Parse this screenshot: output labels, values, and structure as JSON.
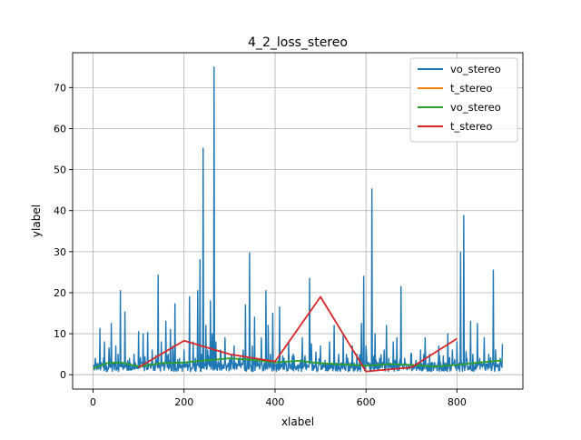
{
  "chart_data": {
    "type": "line",
    "title": "4_2_loss_stereo",
    "xlabel": "xlabel",
    "ylabel": "ylabel",
    "xlim": [
      -45,
      945
    ],
    "ylim": [
      -3.5,
      78.5
    ],
    "xticks": [
      0,
      200,
      400,
      600,
      800
    ],
    "yticks": [
      0,
      10,
      20,
      30,
      40,
      50,
      60,
      70
    ],
    "grid": true,
    "legend_position": "top-right",
    "series": [
      {
        "name": "vo_stereo",
        "color": "#1f77b4",
        "noisy": true,
        "x_range": [
          0,
          900
        ],
        "baseline": 2.5,
        "peaks": [
          [
            2,
            1.0
          ],
          [
            5,
            4.0
          ],
          [
            10,
            1.5
          ],
          [
            15,
            11.3
          ],
          [
            20,
            2.5
          ],
          [
            25,
            8.0
          ],
          [
            30,
            2.0
          ],
          [
            35,
            6.5
          ],
          [
            40,
            12.5
          ],
          [
            45,
            3.0
          ],
          [
            50,
            7.0
          ],
          [
            55,
            5.0
          ],
          [
            60,
            20.5
          ],
          [
            65,
            3.0
          ],
          [
            70,
            15.3
          ],
          [
            80,
            4.0
          ],
          [
            90,
            5.0
          ],
          [
            100,
            10.5
          ],
          [
            105,
            3.0
          ],
          [
            110,
            10.0
          ],
          [
            115,
            2.5
          ],
          [
            120,
            10.3
          ],
          [
            130,
            6.0
          ],
          [
            140,
            3.5
          ],
          [
            143,
            24.3
          ],
          [
            150,
            8.0
          ],
          [
            155,
            3.0
          ],
          [
            160,
            13.0
          ],
          [
            165,
            5.0
          ],
          [
            170,
            11.0
          ],
          [
            175,
            7.0
          ],
          [
            180,
            17.3
          ],
          [
            190,
            4.0
          ],
          [
            200,
            6.0
          ],
          [
            205,
            2.5
          ],
          [
            212,
            19.0
          ],
          [
            220,
            8.0
          ],
          [
            225,
            4.0
          ],
          [
            230,
            20.5
          ],
          [
            235,
            28.0
          ],
          [
            238,
            5.0
          ],
          [
            242,
            55.2
          ],
          [
            248,
            12.0
          ],
          [
            252,
            6.0
          ],
          [
            258,
            18.0
          ],
          [
            262,
            10.0
          ],
          [
            266,
            75.0
          ],
          [
            270,
            8.0
          ],
          [
            280,
            6.0
          ],
          [
            290,
            9.0
          ],
          [
            300,
            4.0
          ],
          [
            310,
            7.0
          ],
          [
            320,
            4.0
          ],
          [
            330,
            6.0
          ],
          [
            335,
            17.0
          ],
          [
            340,
            4.0
          ],
          [
            344,
            29.7
          ],
          [
            350,
            7.0
          ],
          [
            355,
            14.0
          ],
          [
            360,
            4.0
          ],
          [
            370,
            9.0
          ],
          [
            380,
            20.5
          ],
          [
            385,
            12.0
          ],
          [
            390,
            5.0
          ],
          [
            395,
            15.0
          ],
          [
            410,
            16.5
          ],
          [
            420,
            4.0
          ],
          [
            430,
            8.0
          ],
          [
            440,
            5.0
          ],
          [
            460,
            9.0
          ],
          [
            465,
            4.0
          ],
          [
            476,
            23.5
          ],
          [
            480,
            7.5
          ],
          [
            490,
            4.0
          ],
          [
            500,
            7.0
          ],
          [
            510,
            3.5
          ],
          [
            520,
            8.0
          ],
          [
            530,
            12.0
          ],
          [
            540,
            5.0
          ],
          [
            550,
            10.0
          ],
          [
            560,
            4.0
          ],
          [
            570,
            7.0
          ],
          [
            580,
            5.0
          ],
          [
            590,
            12.5
          ],
          [
            595,
            24.0
          ],
          [
            600,
            7.0
          ],
          [
            605,
            3.0
          ],
          [
            613,
            45.3
          ],
          [
            620,
            10.0
          ],
          [
            630,
            4.0
          ],
          [
            640,
            6.0
          ],
          [
            645,
            12.0
          ],
          [
            650,
            4.0
          ],
          [
            660,
            8.0
          ],
          [
            668,
            9.0
          ],
          [
            677,
            21.5
          ],
          [
            685,
            4.0
          ],
          [
            700,
            5.0
          ],
          [
            710,
            3.5
          ],
          [
            720,
            6.0
          ],
          [
            730,
            9.0
          ],
          [
            740,
            5.0
          ],
          [
            760,
            7.0
          ],
          [
            770,
            4.0
          ],
          [
            780,
            10.0
          ],
          [
            790,
            6.0
          ],
          [
            800,
            8.0
          ],
          [
            808,
            29.8
          ],
          [
            815,
            38.8
          ],
          [
            822,
            4.0
          ],
          [
            830,
            13.0
          ],
          [
            835,
            5.0
          ],
          [
            845,
            12.5
          ],
          [
            850,
            4.0
          ],
          [
            860,
            9.0
          ],
          [
            870,
            5.0
          ],
          [
            880,
            25.5
          ],
          [
            885,
            6.0
          ],
          [
            895,
            4.0
          ],
          [
            900,
            7.5
          ]
        ]
      },
      {
        "name": "t_stereo",
        "color": "#ff7f0e",
        "x": [],
        "y": []
      },
      {
        "name": "vo_stereo",
        "color": "#2ca02c",
        "x": [
          0,
          30,
          60,
          100,
          150,
          200,
          250,
          300,
          350,
          400,
          450,
          500,
          550,
          600,
          650,
          700,
          750,
          800,
          850,
          900
        ],
        "y": [
          1.5,
          2.8,
          3.0,
          2.0,
          2.8,
          3.0,
          3.5,
          4.0,
          3.6,
          3.0,
          3.4,
          2.8,
          2.5,
          2.2,
          2.6,
          2.4,
          2.0,
          2.4,
          3.0,
          3.5
        ]
      },
      {
        "name": "t_stereo",
        "color": "#d62728",
        "x": [
          100,
          200,
          300,
          400,
          500,
          600,
          700,
          800
        ],
        "y": [
          1.8,
          8.3,
          5.0,
          3.2,
          19.0,
          0.8,
          1.8,
          8.8
        ]
      }
    ]
  }
}
